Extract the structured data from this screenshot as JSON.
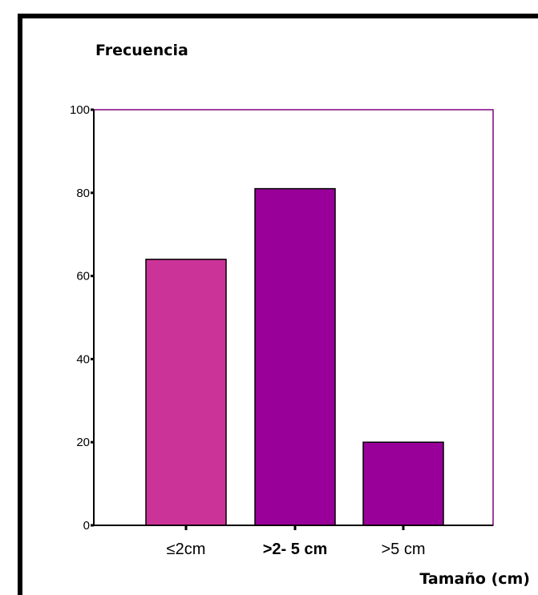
{
  "chart_data": {
    "type": "bar",
    "title": "",
    "ylabel": "Frecuencia",
    "xlabel": "Tamaño (cm)",
    "categories": [
      "≤2cm",
      ">2- 5 cm",
      ">5 cm"
    ],
    "values": [
      64,
      81,
      20
    ],
    "ylim": [
      0,
      100
    ],
    "yticks": [
      0,
      20,
      40,
      60,
      80,
      100
    ],
    "grid": false,
    "legend": "none",
    "colors": {
      "bars": [
        "#cc3399",
        "#990099",
        "#990099"
      ],
      "plot_border": "#800080",
      "axis": "#000000"
    }
  }
}
